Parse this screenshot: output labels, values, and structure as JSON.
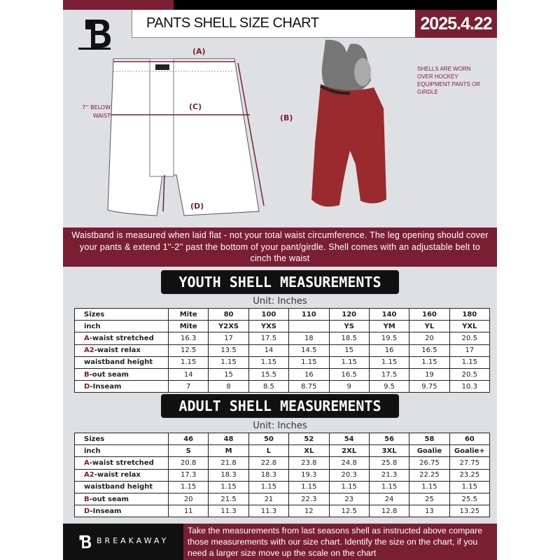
{
  "header": {
    "title": "PANTS SHELL SIZE CHART",
    "date": "2025.4.22"
  },
  "diagram": {
    "label_a": "(A)",
    "label_b": "(B)",
    "label_c": "(C)",
    "label_d": "(D)",
    "c_note_line1": "7'' BELOW",
    "c_note_line2": "WAIST",
    "shell_note": "SHELLS ARE WORN OVER HOCKEY EQUIPMENT PANTS OR GIRDLE"
  },
  "info_band": "Waistband is measured when laid flat - not your total waist circumference. The leg opening should cover your pants & extend 1''-2'' past the bottom of your pant/girdle. Shell comes with an adjustable belt to cinch the waist",
  "youth": {
    "title": "YOUTH SHELL MEASUREMENTS",
    "unit": "Unit: Inches",
    "rows": [
      {
        "prefix": "",
        "label": "Sizes",
        "values": [
          "Mite",
          "80",
          "100",
          "110",
          "120",
          "140",
          "160",
          "180"
        ]
      },
      {
        "prefix": "",
        "label": "inch",
        "values": [
          "Mite",
          "Y2XS",
          "YXS",
          "",
          "YS",
          "YM",
          "YL",
          "YXL"
        ]
      },
      {
        "prefix": "A",
        "label": "-waist stretched",
        "values": [
          "16.3",
          "17",
          "17.5",
          "18",
          "18.5",
          "19.5",
          "20",
          "20.5"
        ]
      },
      {
        "prefix": "A2",
        "label": "-waist relax",
        "values": [
          "12.5",
          "13.5",
          "14",
          "14.5",
          "15",
          "16",
          "16.5",
          "17"
        ]
      },
      {
        "prefix": "",
        "label": "waistband height",
        "values": [
          "1.15",
          "1.15",
          "1.15",
          "1.15",
          "1.15",
          "1.15",
          "1.15",
          "1.15"
        ]
      },
      {
        "prefix": "B",
        "label": "-out seam",
        "values": [
          "14",
          "15",
          "15.5",
          "16",
          "16.5",
          "17.5",
          "19",
          "20.5"
        ]
      },
      {
        "prefix": "D",
        "label": "-Inseam",
        "values": [
          "7",
          "8",
          "8.5",
          "8.75",
          "9",
          "9.5",
          "9.75",
          "10.3"
        ]
      }
    ]
  },
  "adult": {
    "title": "ADULT SHELL MEASUREMENTS",
    "unit": "Unit: Inches",
    "rows": [
      {
        "prefix": "",
        "label": "Sizes",
        "values": [
          "46",
          "48",
          "50",
          "52",
          "54",
          "56",
          "58",
          "60"
        ]
      },
      {
        "prefix": "",
        "label": "inch",
        "values": [
          "S",
          "M",
          "L",
          "XL",
          "2XL",
          "3XL",
          "Goalie",
          "Goalie+"
        ]
      },
      {
        "prefix": "A",
        "label": "-waist stretched",
        "values": [
          "20.8",
          "21.8",
          "22.8",
          "23.8",
          "24.8",
          "25.8",
          "26.75",
          "27.75"
        ]
      },
      {
        "prefix": "A2",
        "label": "-waist relax",
        "values": [
          "17.3",
          "18.3",
          "18.3",
          "19.3",
          "20.3",
          "21.3",
          "22.25",
          "23.25"
        ]
      },
      {
        "prefix": "",
        "label": "waistband height",
        "values": [
          "1.15",
          "1.15",
          "1.15",
          "1.15",
          "1.15",
          "1.15",
          "1.15",
          "1.15"
        ]
      },
      {
        "prefix": "B",
        "label": "-out seam",
        "values": [
          "20",
          "21.5",
          "21",
          "22.3",
          "23",
          "24",
          "25",
          "25.5"
        ]
      },
      {
        "prefix": "D",
        "label": "-Inseam",
        "values": [
          "11",
          "11.3",
          "11.3",
          "12",
          "12.5",
          "12.8",
          "13",
          "13.25"
        ]
      }
    ]
  },
  "footer": {
    "brand": "BREAKAWAY",
    "text": "Take the measurements from last seasons shell as instructed above compare those measurements  with our size chart. Identify the size on the chart, if you need a larger size move up the scale on the chart"
  },
  "colors": {
    "accent": "#7a1f33",
    "dark": "#111111",
    "background": "#dfe0e4"
  }
}
